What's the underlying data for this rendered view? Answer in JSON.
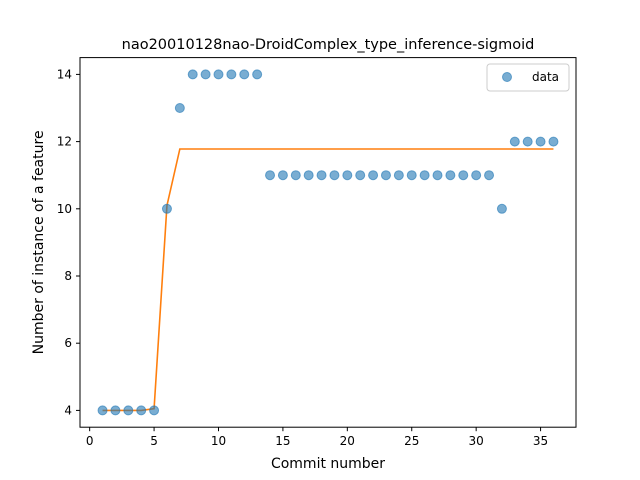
{
  "chart_data": {
    "type": "scatter",
    "title": "nao20010128nao-DroidComplex_type_inference-sigmoid",
    "xlabel": "Commit number",
    "ylabel": "Number of instance of a feature",
    "xlim": [
      -0.75,
      37.75
    ],
    "ylim": [
      3.5,
      14.5
    ],
    "xticks": [
      0,
      5,
      10,
      15,
      20,
      25,
      30,
      35
    ],
    "yticks": [
      4,
      6,
      8,
      10,
      12,
      14
    ],
    "legend": {
      "placement": "top-right",
      "entries": [
        "data"
      ]
    },
    "colors": {
      "points": "#1f77b4",
      "fit_line": "#ff7f0e"
    },
    "series": [
      {
        "name": "data",
        "kind": "scatter",
        "x": [
          1,
          2,
          3,
          4,
          5,
          6,
          7,
          8,
          9,
          10,
          11,
          12,
          13,
          14,
          15,
          16,
          17,
          18,
          19,
          20,
          21,
          22,
          23,
          24,
          25,
          26,
          27,
          28,
          29,
          30,
          31,
          32,
          33,
          34,
          35,
          36
        ],
        "y": [
          4,
          4,
          4,
          4,
          4,
          10,
          13,
          14,
          14,
          14,
          14,
          14,
          14,
          11,
          11,
          11,
          11,
          11,
          11,
          11,
          11,
          11,
          11,
          11,
          11,
          11,
          11,
          11,
          11,
          11,
          11,
          10,
          12,
          12,
          12,
          12
        ]
      },
      {
        "kind": "line",
        "x": [
          1,
          2,
          3,
          4,
          5,
          6,
          7,
          8,
          9,
          10,
          11,
          12,
          13,
          14,
          15,
          16,
          17,
          18,
          19,
          20,
          21,
          22,
          23,
          24,
          25,
          26,
          27,
          28,
          29,
          30,
          31,
          32,
          33,
          34,
          35,
          36
        ],
        "y": [
          4,
          4,
          4,
          4,
          4.05,
          10.1,
          11.78,
          11.78,
          11.78,
          11.78,
          11.78,
          11.78,
          11.78,
          11.78,
          11.78,
          11.78,
          11.78,
          11.78,
          11.78,
          11.78,
          11.78,
          11.78,
          11.78,
          11.78,
          11.78,
          11.78,
          11.78,
          11.78,
          11.78,
          11.78,
          11.78,
          11.78,
          11.78,
          11.78,
          11.78,
          11.78
        ]
      }
    ]
  }
}
